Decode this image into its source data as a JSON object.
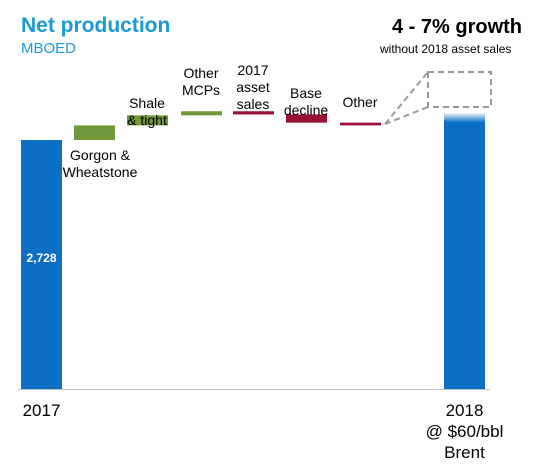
{
  "header": {
    "title": "Net production",
    "subtitle": "MBOED",
    "growth": "4 - 7% growth",
    "growth_note": "without 2018 asset sales"
  },
  "colors": {
    "total": "#0d6fc4",
    "increase": "#6f993a",
    "decrease": "#9b0f36",
    "title": "#1c9ad6",
    "dash": "#999999"
  },
  "chart_data": {
    "type": "bar",
    "subtype": "waterfall",
    "title": "Net production",
    "ylabel": "MBOED",
    "ylim": [
      0,
      3400
    ],
    "grid": false,
    "start": {
      "label": [
        "2017"
      ],
      "value": 2728,
      "value_label": "2,728"
    },
    "steps": [
      {
        "label": [
          "Gorgon &",
          "Wheatstone"
        ],
        "delta": 160,
        "kind": "increase"
      },
      {
        "label": [
          "Shale",
          "& tight"
        ],
        "delta": 110,
        "kind": "increase"
      },
      {
        "label": [
          "Other",
          "MCPs"
        ],
        "delta": 45,
        "kind": "increase"
      },
      {
        "label": [
          "2017",
          "asset",
          "sales"
        ],
        "delta": -35,
        "kind": "decrease"
      },
      {
        "label": [
          "Base",
          "decline"
        ],
        "delta": -90,
        "kind": "decrease"
      },
      {
        "label": [
          "Other"
        ],
        "delta": -30,
        "kind": "decrease"
      }
    ],
    "end": {
      "label": [
        "2018",
        "@ $60/bbl",
        "Brent"
      ],
      "range": [
        2920,
        3030
      ]
    },
    "annotation": "4 - 7% growth"
  }
}
